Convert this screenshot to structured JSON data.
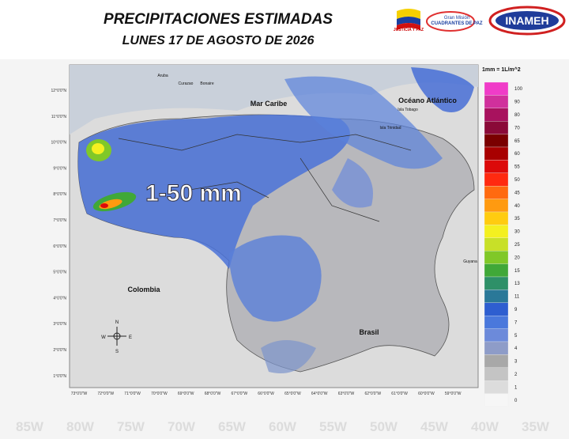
{
  "header": {
    "title": "PRECIPITACIONES ESTIMADAS",
    "subtitle": "LUNES 17 DE AGOSTO DE 2026",
    "logos": [
      "JUSTICIA Y PAZ",
      "Gran Misión",
      "CUADRANTES DE PAZ",
      "INAMEH"
    ]
  },
  "map": {
    "annotation": "1-50 mm",
    "places": [
      {
        "label": "Mar Caribe"
      },
      {
        "label": "Océano Atlántico"
      },
      {
        "label": "Colombia"
      },
      {
        "label": "Brasil"
      },
      {
        "label": "Guyana"
      },
      {
        "label": "Aruba"
      },
      {
        "label": "Curazao"
      },
      {
        "label": "Bonaire"
      },
      {
        "label": "Isla Trinidad"
      },
      {
        "label": "Isla Tobago"
      }
    ],
    "compass": [
      "N",
      "S",
      "E",
      "W"
    ],
    "lat_labels": [
      "12°0'0\"N",
      "11°0'0\"N",
      "10°0'0\"N",
      "9°0'0\"N",
      "8°0'0\"N",
      "7°0'0\"N",
      "6°0'0\"N",
      "5°0'0\"N",
      "4°0'0\"N",
      "3°0'0\"N",
      "2°0'0\"N",
      "1°0'0\"N"
    ],
    "lon_labels": [
      "73°0'0\"W",
      "72°0'0\"W",
      "71°0'0\"W",
      "70°0'0\"W",
      "69°0'0\"W",
      "68°0'0\"W",
      "67°0'0\"W",
      "66°0'0\"W",
      "65°0'0\"W",
      "64°0'0\"W",
      "63°0'0\"W",
      "62°0'0\"W",
      "61°0'0\"W",
      "60°0'0\"W",
      "59°0'0\"W"
    ],
    "background_lon": [
      "85W",
      "80W",
      "75W",
      "70W",
      "65W",
      "60W",
      "55W",
      "50W",
      "45W",
      "40W",
      "35W"
    ]
  },
  "legend": {
    "unit": "1mm = 1L/m^2",
    "entries": [
      {
        "value": 100,
        "color": "#f03cc8"
      },
      {
        "value": 90,
        "color": "#d0309c"
      },
      {
        "value": 80,
        "color": "#a8125e"
      },
      {
        "value": 70,
        "color": "#8a0a38"
      },
      {
        "value": 65,
        "color": "#7a0000"
      },
      {
        "value": 60,
        "color": "#a80000"
      },
      {
        "value": 55,
        "color": "#dc0a0a"
      },
      {
        "value": 50,
        "color": "#ff2a10"
      },
      {
        "value": 45,
        "color": "#ff6a10"
      },
      {
        "value": 40,
        "color": "#ff9a10"
      },
      {
        "value": 35,
        "color": "#ffcc10"
      },
      {
        "value": 30,
        "color": "#f4f020"
      },
      {
        "value": 25,
        "color": "#c8e028"
      },
      {
        "value": 20,
        "color": "#80c828"
      },
      {
        "value": 15,
        "color": "#40a838"
      },
      {
        "value": 13,
        "color": "#2e9068"
      },
      {
        "value": 11,
        "color": "#2a7898"
      },
      {
        "value": 9,
        "color": "#2e5ed0"
      },
      {
        "value": 7,
        "color": "#4a78dc"
      },
      {
        "value": 5,
        "color": "#6c8ada"
      },
      {
        "value": 4,
        "color": "#8e9cc8"
      },
      {
        "value": 3,
        "color": "#a8a8a8"
      },
      {
        "value": 2,
        "color": "#c4c4c4"
      },
      {
        "value": 1,
        "color": "#dcdcdc"
      },
      {
        "value": 0,
        "color": "#f6f6f6"
      }
    ]
  }
}
